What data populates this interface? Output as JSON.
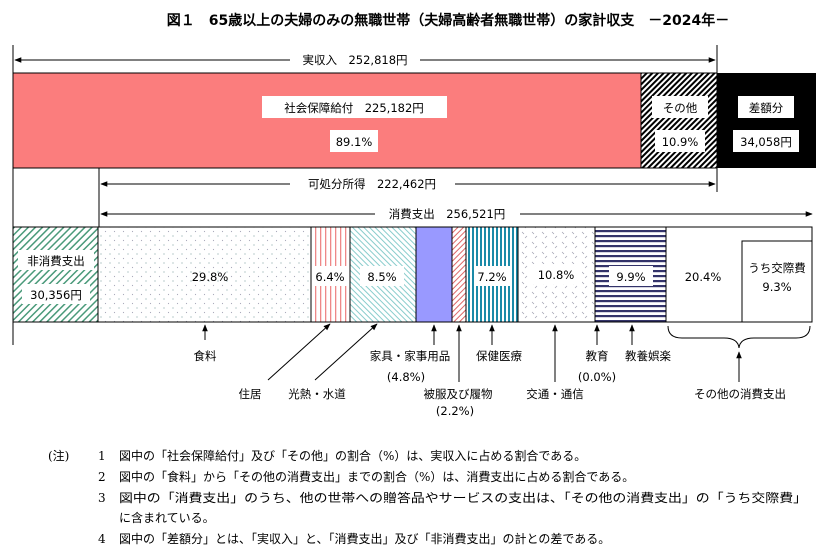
{
  "title": "図１　65歳以上の夫婦のみの無職世帯（夫婦高齢者無職世帯）の家計収支　－2024年－",
  "income": {
    "total_label": "実収入　252,818円",
    "social_security_label": "社会保障給付　225,182円",
    "social_security_pct": "89.1%",
    "other_label": "その他",
    "other_pct": "10.9%",
    "deficit_label": "差額分",
    "deficit_value": "34,058円",
    "disposable_label": "可処分所得　222,462円"
  },
  "expenditure": {
    "consumption_label": "消費支出　256,521円",
    "non_consumption_label": "非消費支出",
    "non_consumption_value": "30,356円",
    "categories": [
      {
        "name": "食料",
        "pct": "29.8%"
      },
      {
        "name": "住居",
        "pct": "6.4%"
      },
      {
        "name": "光熱・水道",
        "pct": "8.5%"
      },
      {
        "name": "家具・家事用品",
        "pct": "(4.8%)"
      },
      {
        "name": "被服及び履物",
        "pct": "(2.2%)"
      },
      {
        "name": "保健医療",
        "pct": "7.2%"
      },
      {
        "name": "交通・通信",
        "pct": "10.8%"
      },
      {
        "name": "教育",
        "pct": "(0.0%)"
      },
      {
        "name": "教養娯楽",
        "pct": "9.9%"
      },
      {
        "name": "その他の消費支出",
        "pct": "20.4%"
      }
    ],
    "social_expense_label": "うち交際費",
    "social_expense_pct": "9.3%"
  },
  "colors": {
    "social_security": "#fb7d7d",
    "furniture": "#9999ff",
    "deficit": "#000000"
  },
  "notes": {
    "marker": "(注)",
    "items": [
      {
        "num": "1",
        "text": "図中の「社会保障給付」及び「その他」の割合（%）は、実収入に占める割合である。"
      },
      {
        "num": "2",
        "text": "図中の「食料」から「その他の消費支出」までの割合（%）は、消費支出に占める割合である。"
      },
      {
        "num": "3",
        "text": "図中の「消費支出」のうち、他の世帯への贈答品やサービスの支出は、「その他の消費支出」の「うち交際費」"
      },
      {
        "num": "",
        "text": "に含まれている。"
      },
      {
        "num": "4",
        "text": "図中の「差額分」とは、「実収入」と、「消費支出」及び「非消費支出」の計との差である。"
      }
    ]
  }
}
